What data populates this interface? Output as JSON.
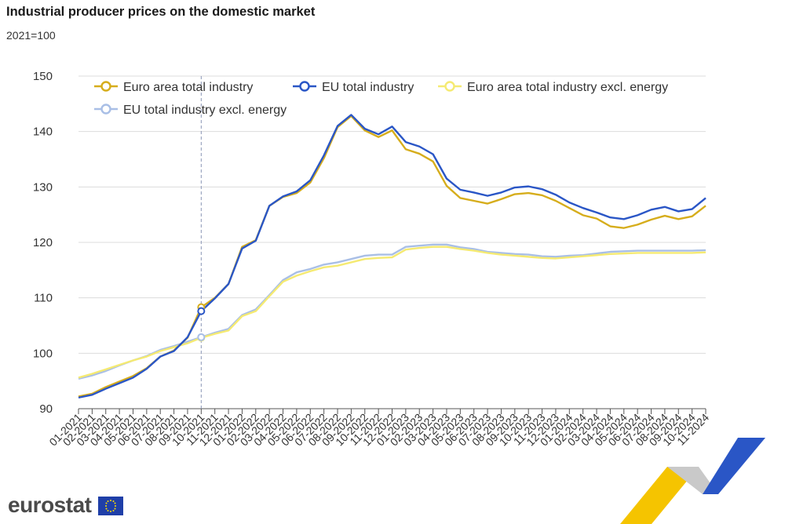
{
  "header": {
    "title": "Industrial producer prices on the domestic market",
    "unit": "2021=100"
  },
  "brand": {
    "name": "eurostat",
    "logo_icon": "eu-flag-icon"
  },
  "chart_data": {
    "type": "line",
    "title": "Industrial producer prices on the domestic market",
    "ylabel": "2021=100",
    "ylim": [
      90,
      150
    ],
    "yticks": [
      90,
      100,
      110,
      120,
      130,
      140,
      150
    ],
    "grid": true,
    "legend_position": "top",
    "highlight": {
      "category": "10-2021",
      "index": 9
    },
    "categories": [
      "01-2021",
      "02-2021",
      "03-2021",
      "04-2021",
      "05-2021",
      "06-2021",
      "07-2021",
      "08-2021",
      "09-2021",
      "10-2021",
      "11-2021",
      "12-2021",
      "01-2022",
      "02-2022",
      "03-2022",
      "04-2022",
      "05-2022",
      "06-2022",
      "07-2022",
      "08-2022",
      "09-2022",
      "10-2022",
      "11-2022",
      "12-2022",
      "01-2023",
      "02-2023",
      "03-2023",
      "04-2023",
      "05-2023",
      "06-2023",
      "07-2023",
      "08-2023",
      "09-2023",
      "10-2023",
      "11-2023",
      "12-2023",
      "01-2024",
      "02-2024",
      "03-2024",
      "04-2024",
      "05-2024",
      "06-2024",
      "07-2024",
      "08-2024",
      "09-2024",
      "10-2024",
      "11-2024"
    ],
    "series": [
      {
        "name": "Euro area total industry",
        "color": "#d6ad1c",
        "values": [
          92.2,
          92.7,
          93.9,
          94.9,
          95.9,
          97.3,
          99.4,
          100.5,
          102.8,
          108.3,
          110.0,
          112.5,
          119.2,
          120.4,
          126.6,
          128.2,
          128.9,
          130.8,
          135.2,
          140.8,
          142.8,
          140.2,
          139.0,
          140.2,
          136.8,
          136.0,
          134.6,
          130.2,
          128.0,
          127.5,
          127.0,
          127.8,
          128.7,
          128.9,
          128.5,
          127.5,
          126.2,
          124.9,
          124.3,
          122.9,
          122.6,
          123.2,
          124.1,
          124.8,
          124.2,
          124.7,
          126.6
        ]
      },
      {
        "name": "EU total industry",
        "color": "#2a56c6",
        "values": [
          92.0,
          92.5,
          93.6,
          94.6,
          95.6,
          97.2,
          99.4,
          100.4,
          102.9,
          107.6,
          109.9,
          112.5,
          118.9,
          120.3,
          126.6,
          128.3,
          129.2,
          131.2,
          135.7,
          141.0,
          143.0,
          140.5,
          139.5,
          140.9,
          138.1,
          137.3,
          135.9,
          131.5,
          129.5,
          129.0,
          128.4,
          129.0,
          129.9,
          130.1,
          129.6,
          128.6,
          127.2,
          126.2,
          125.4,
          124.5,
          124.2,
          124.9,
          125.9,
          126.4,
          125.6,
          126.0,
          128.0
        ]
      },
      {
        "name": "Euro area total industry excl. energy",
        "color": "#f5ea72",
        "values": [
          95.6,
          96.3,
          97.1,
          97.9,
          98.7,
          99.4,
          100.4,
          101.1,
          101.8,
          102.8,
          103.5,
          104.1,
          106.7,
          107.6,
          110.3,
          112.9,
          114.0,
          114.8,
          115.5,
          115.8,
          116.4,
          117.0,
          117.2,
          117.3,
          118.7,
          119.0,
          119.2,
          119.2,
          118.8,
          118.5,
          118.1,
          117.8,
          117.6,
          117.4,
          117.2,
          117.1,
          117.3,
          117.5,
          117.7,
          117.9,
          118.0,
          118.1,
          118.1,
          118.1,
          118.1,
          118.1,
          118.2
        ]
      },
      {
        "name": "EU total industry excl. energy",
        "color": "#a9bfe6",
        "values": [
          95.4,
          96.0,
          96.8,
          97.8,
          98.7,
          99.5,
          100.6,
          101.3,
          102.1,
          102.9,
          103.7,
          104.4,
          106.9,
          107.9,
          110.5,
          113.2,
          114.6,
          115.2,
          116.0,
          116.4,
          117.0,
          117.6,
          117.8,
          117.8,
          119.2,
          119.4,
          119.6,
          119.6,
          119.1,
          118.8,
          118.3,
          118.1,
          117.9,
          117.8,
          117.5,
          117.4,
          117.6,
          117.7,
          118.0,
          118.3,
          118.4,
          118.5,
          118.5,
          118.5,
          118.5,
          118.5,
          118.6
        ]
      }
    ]
  }
}
